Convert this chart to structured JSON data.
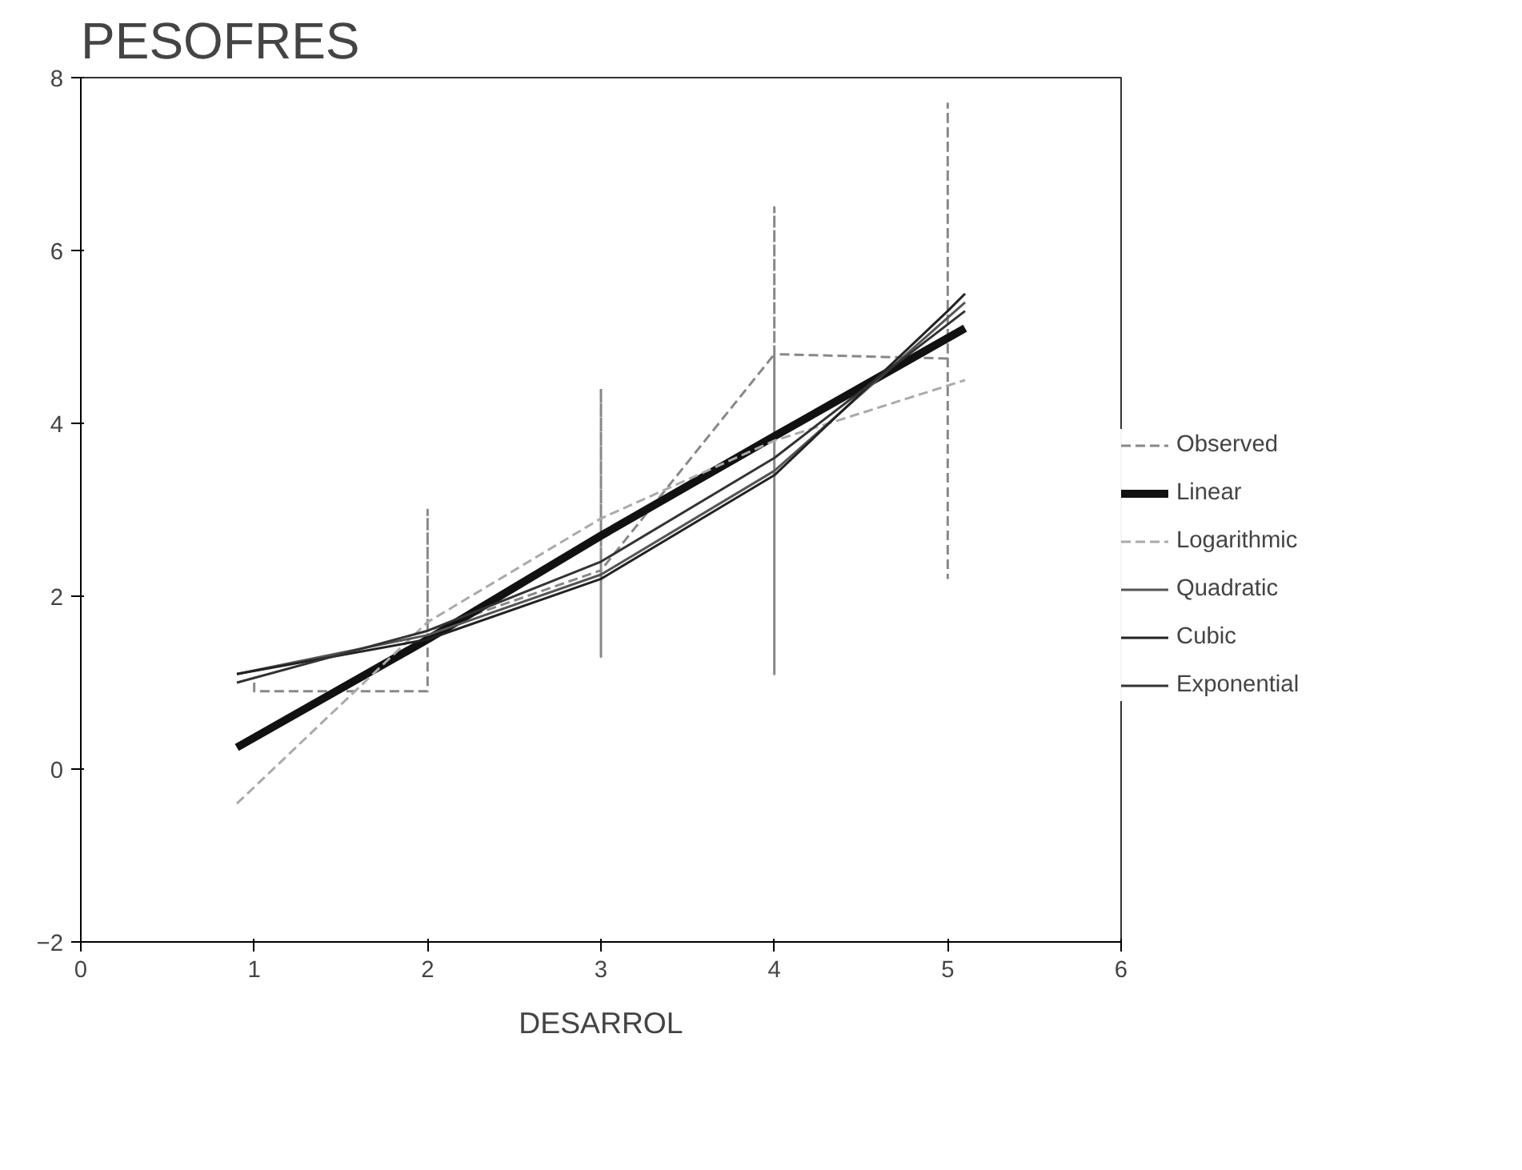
{
  "chart_data": {
    "type": "line",
    "title": "PESOFRES",
    "xlabel": "DESARROL",
    "xlim": [
      0,
      6
    ],
    "ylim": [
      -2,
      8
    ],
    "xticks": [
      0,
      1,
      2,
      3,
      4,
      5,
      6
    ],
    "yticks": [
      -2,
      0,
      2,
      4,
      6,
      8
    ],
    "grid": false,
    "legend": "right",
    "marker": "none",
    "series": [
      {
        "name": "Observed",
        "color": "#888888",
        "line_style": "dashed",
        "x": [
          1,
          1,
          2,
          2,
          2,
          3,
          3,
          3,
          3,
          4,
          4,
          4,
          4,
          5,
          5,
          5
        ],
        "values": [
          1.0,
          0.9,
          0.9,
          3.0,
          1.6,
          2.3,
          4.4,
          1.3,
          2.3,
          4.8,
          1.1,
          6.5,
          4.8,
          4.75,
          7.7,
          2.2
        ]
      },
      {
        "name": "Linear",
        "color": "#111111",
        "x": [
          0.9,
          2,
          3,
          4,
          5.1
        ],
        "values": [
          0.25,
          1.5,
          2.7,
          3.85,
          5.1
        ]
      },
      {
        "name": "Logarithmic",
        "color": "#aaaaaa",
        "line_style": "dashed",
        "x": [
          0.9,
          2,
          3,
          4,
          5.1
        ],
        "values": [
          -0.4,
          1.7,
          2.9,
          3.8,
          4.5
        ]
      },
      {
        "name": "Quadratic",
        "color": "#555555",
        "x": [
          0.9,
          2,
          3,
          4,
          5.1
        ],
        "values": [
          1.1,
          1.55,
          2.25,
          3.45,
          5.4
        ]
      },
      {
        "name": "Cubic",
        "color": "#222222",
        "x": [
          0.9,
          2,
          3,
          4,
          5,
          5.1
        ],
        "values": [
          1.1,
          1.5,
          2.2,
          3.4,
          5.3,
          5.5
        ]
      },
      {
        "name": "Exponential",
        "color": "#333333",
        "x": [
          0.9,
          2,
          3,
          4,
          5.1
        ],
        "values": [
          1.0,
          1.6,
          2.4,
          3.6,
          5.3
        ]
      }
    ]
  }
}
